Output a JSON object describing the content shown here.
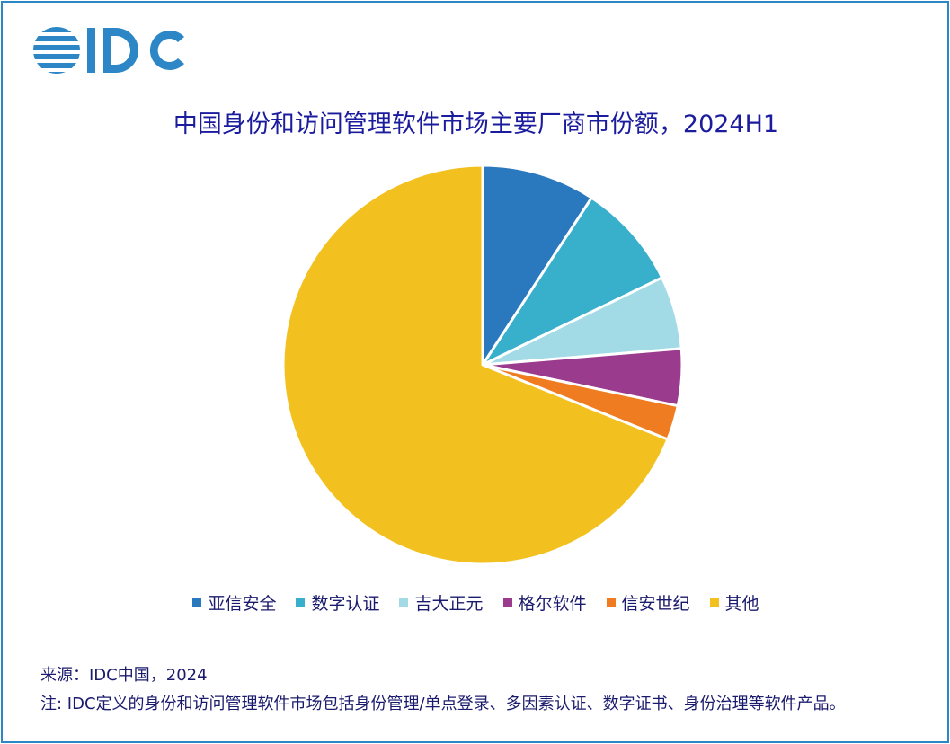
{
  "logo": {
    "text": "IDC",
    "color": "#2d87c6"
  },
  "chart_data": {
    "type": "pie",
    "title": "中国身份和访问管理软件市场主要厂商市份额，2024H1",
    "legend_position": "bottom",
    "start_angle_deg": 0,
    "direction": "clockwise",
    "slices": [
      {
        "label": "亚信安全",
        "value": 9.2,
        "color": "#2a78bd"
      },
      {
        "label": "数字认证",
        "value": 8.6,
        "color": "#38afcb"
      },
      {
        "label": "吉大正元",
        "value": 5.9,
        "color": "#a2dbe6"
      },
      {
        "label": "格尔软件",
        "value": 4.6,
        "color": "#9b3b8e"
      },
      {
        "label": "信安世纪",
        "value": 2.8,
        "color": "#f07c22"
      },
      {
        "label": "其他",
        "value": 68.9,
        "color": "#f3c11f"
      }
    ]
  },
  "footer": {
    "source": "来源：IDC中国，2024",
    "note": "注: IDC定义的身份和访问管理软件市场包括身份管理/单点登录、多因素认证、数字证书、身份治理等软件产品。"
  }
}
